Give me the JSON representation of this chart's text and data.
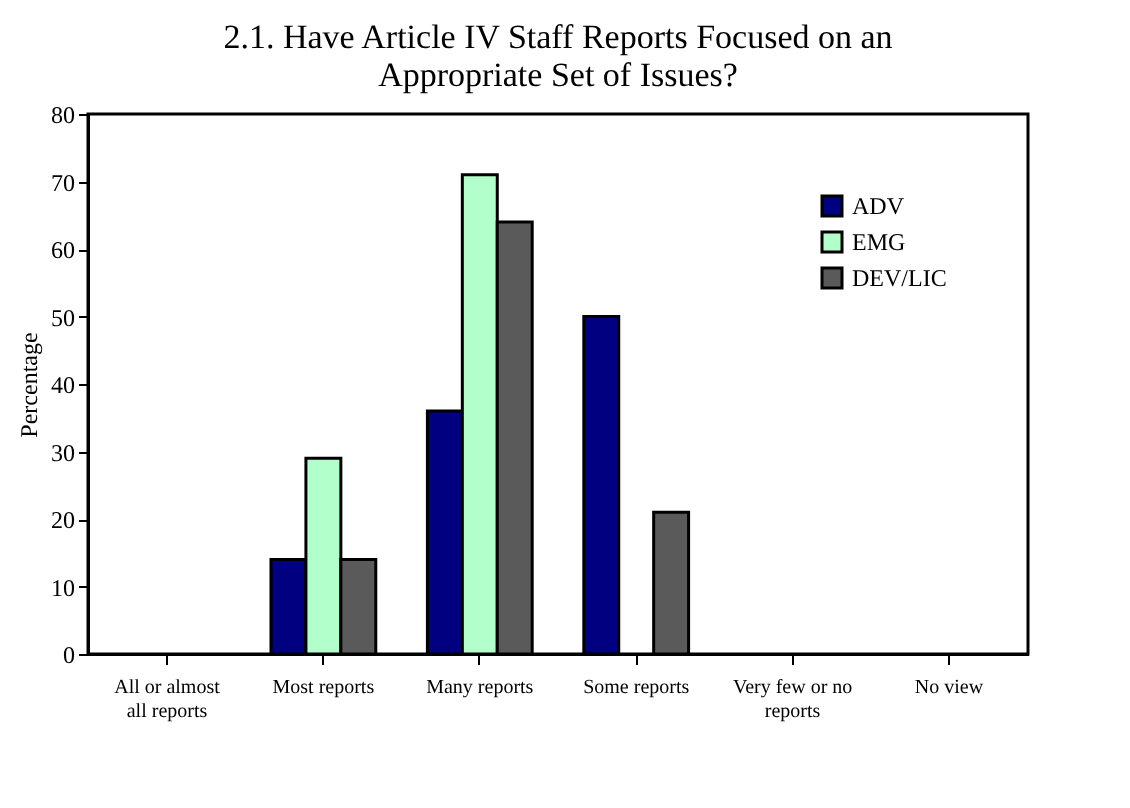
{
  "chart_data": {
    "type": "bar",
    "title": "2.1. Have Article IV Staff Reports Focused on an Appropriate Set of  Issues?",
    "ylabel": "Percentage",
    "categories": [
      "All or almost all reports",
      "Most reports",
      "Many reports",
      "Some reports",
      "Very few or no reports",
      "No view"
    ],
    "series": [
      {
        "name": "ADV",
        "color": "#000080",
        "values": [
          null,
          14,
          36,
          50,
          null,
          null
        ]
      },
      {
        "name": "EMG",
        "color": "#b3ffcc",
        "values": [
          null,
          29,
          71,
          null,
          null,
          null
        ]
      },
      {
        "name": "DEV/LIC",
        "color": "#5a5a5a",
        "values": [
          null,
          14,
          64,
          21,
          null,
          null
        ]
      }
    ],
    "ylim": [
      0,
      80
    ],
    "yticks": [
      0,
      10,
      20,
      30,
      40,
      50,
      60,
      70,
      80
    ],
    "grid": false,
    "legend": "top right"
  }
}
